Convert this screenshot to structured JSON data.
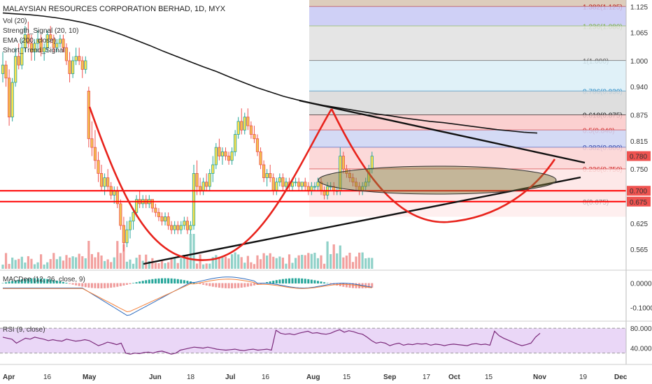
{
  "header": {
    "symbol_line": "MALAYSIAN RESOURCES CORPORATION BERHAD, 1D, MYX",
    "indicators": [
      "Vol (20)",
      "Strength_Signal (20, 10)",
      "EMA (200, close)",
      "Short_Trend_Signal"
    ]
  },
  "subpanes": {
    "macd_label": "MACDee (12, 26, close, 9)",
    "rsi_label": "RSI (9, close)"
  },
  "colors": {
    "up": "#26a69a",
    "down": "#ef5350",
    "candle_up_body": "#ffe14d",
    "ema": "#111111",
    "support_red": "#ff0000",
    "cup_curve": "#e8231c",
    "trendline": "#111111",
    "macd_line": "#2f6dbf",
    "signal_line": "#f5813a",
    "rsi_line": "#7b2a7b",
    "rsi_band": "#ead7f7"
  },
  "chart_data": [
    {
      "type": "candlestick",
      "title": "MALAYSIAN RESOURCES CORPORATION BERHAD, 1D, MYX",
      "x_ticks": [
        "Apr",
        "16",
        "May",
        "Jun",
        "18",
        "Jul",
        "16",
        "Aug",
        "15",
        "Sep",
        "17",
        "Oct",
        "15",
        "Nov",
        "19",
        "Dec"
      ],
      "y_ticks": [
        1.125,
        1.065,
        1.0,
        0.94,
        0.875,
        0.815,
        0.75,
        0.625,
        0.565
      ],
      "ylim": [
        0.52,
        1.14
      ],
      "price_labels": [
        {
          "value": 0.78,
          "text": "0.780",
          "color": "#ef5350"
        },
        {
          "value": 0.7,
          "text": "0.700",
          "color": "#ef5350"
        },
        {
          "value": 0.675,
          "text": "0.675",
          "color": "#ef5350"
        }
      ],
      "fibonacci": [
        {
          "level": "1.382",
          "price": 1.125,
          "text": "1.382(1.125)",
          "color": "#b71c1c",
          "fill": "#d7c4b0"
        },
        {
          "level": "1.236",
          "price": 1.08,
          "text": "1.236(1.080)",
          "color": "#7cb342",
          "fill": "#c7c8f5"
        },
        {
          "level": "1",
          "price": 1.0,
          "text": "1(1.000)",
          "color": "#555555",
          "fill": "#e1e1e1"
        },
        {
          "level": "0.786",
          "price": 0.93,
          "text": "0.786(0.930)",
          "color": "#2a8ac4",
          "fill": "#dbeef7"
        },
        {
          "level": "0.618",
          "price": 0.875,
          "text": "0.618(0.875)",
          "color": "#111111",
          "fill": "#d8d8d8"
        },
        {
          "level": "0.5",
          "price": 0.84,
          "text": "0.5(0.840)",
          "color": "#d32f2f",
          "fill": "#fac8c8"
        },
        {
          "level": "0.382",
          "price": 0.8,
          "text": "0.382(0.800)",
          "color": "#3949ab",
          "fill": "#ccd3f3"
        },
        {
          "level": "0.236",
          "price": 0.75,
          "text": "0.236(0.750)",
          "color": "#d32f2f",
          "fill": "#fbd2d2"
        },
        {
          "level": "0",
          "price": 0.675,
          "text": "0(0.675)",
          "color": "#777777",
          "fill": "#fde4e4"
        }
      ],
      "support_lines": [
        0.7,
        0.675
      ],
      "candles": [
        {
          "o": 0.97,
          "h": 1.02,
          "l": 0.95,
          "c": 0.99
        },
        {
          "o": 0.99,
          "h": 1.0,
          "l": 0.94,
          "c": 0.96
        },
        {
          "o": 0.96,
          "h": 0.98,
          "l": 0.85,
          "c": 0.87
        },
        {
          "o": 0.87,
          "h": 0.96,
          "l": 0.86,
          "c": 0.95
        },
        {
          "o": 0.95,
          "h": 1.03,
          "l": 0.94,
          "c": 1.01
        },
        {
          "o": 1.01,
          "h": 1.04,
          "l": 0.98,
          "c": 0.99
        },
        {
          "o": 0.99,
          "h": 1.05,
          "l": 0.98,
          "c": 1.03
        },
        {
          "o": 1.03,
          "h": 1.08,
          "l": 1.02,
          "c": 1.06
        },
        {
          "o": 1.06,
          "h": 1.09,
          "l": 1.03,
          "c": 1.04
        },
        {
          "o": 1.04,
          "h": 1.06,
          "l": 1.0,
          "c": 1.02
        },
        {
          "o": 1.02,
          "h": 1.05,
          "l": 1.0,
          "c": 1.04
        },
        {
          "o": 1.04,
          "h": 1.07,
          "l": 1.02,
          "c": 1.05
        },
        {
          "o": 1.05,
          "h": 1.06,
          "l": 1.01,
          "c": 1.02
        },
        {
          "o": 1.02,
          "h": 1.04,
          "l": 1.0,
          "c": 1.03
        },
        {
          "o": 1.03,
          "h": 1.07,
          "l": 1.02,
          "c": 1.06
        },
        {
          "o": 1.06,
          "h": 1.08,
          "l": 1.04,
          "c": 1.05
        },
        {
          "o": 1.05,
          "h": 1.06,
          "l": 1.02,
          "c": 1.03
        },
        {
          "o": 1.03,
          "h": 1.05,
          "l": 1.02,
          "c": 1.04
        },
        {
          "o": 1.04,
          "h": 1.06,
          "l": 1.03,
          "c": 1.05
        },
        {
          "o": 1.05,
          "h": 1.06,
          "l": 1.02,
          "c": 1.03
        },
        {
          "o": 1.03,
          "h": 1.04,
          "l": 0.99,
          "c": 1.0
        },
        {
          "o": 1.0,
          "h": 1.02,
          "l": 0.95,
          "c": 0.97
        },
        {
          "o": 0.97,
          "h": 1.01,
          "l": 0.96,
          "c": 1.0
        },
        {
          "o": 1.0,
          "h": 1.03,
          "l": 0.99,
          "c": 1.01
        },
        {
          "o": 1.01,
          "h": 1.03,
          "l": 0.99,
          "c": 1.0
        },
        {
          "o": 1.0,
          "h": 1.01,
          "l": 0.96,
          "c": 0.98
        },
        {
          "o": 0.98,
          "h": 1.01,
          "l": 0.97,
          "c": 1.0
        },
        {
          "o": 0.93,
          "h": 0.94,
          "l": 0.8,
          "c": 0.82
        },
        {
          "o": 0.82,
          "h": 0.86,
          "l": 0.78,
          "c": 0.8
        },
        {
          "o": 0.8,
          "h": 0.84,
          "l": 0.75,
          "c": 0.77
        },
        {
          "o": 0.77,
          "h": 0.79,
          "l": 0.72,
          "c": 0.74
        },
        {
          "o": 0.74,
          "h": 0.76,
          "l": 0.7,
          "c": 0.71
        },
        {
          "o": 0.71,
          "h": 0.74,
          "l": 0.69,
          "c": 0.73
        },
        {
          "o": 0.73,
          "h": 0.75,
          "l": 0.7,
          "c": 0.71
        },
        {
          "o": 0.71,
          "h": 0.72,
          "l": 0.68,
          "c": 0.69
        },
        {
          "o": 0.69,
          "h": 0.71,
          "l": 0.67,
          "c": 0.7
        },
        {
          "o": 0.7,
          "h": 0.71,
          "l": 0.66,
          "c": 0.67
        },
        {
          "o": 0.67,
          "h": 0.68,
          "l": 0.61,
          "c": 0.62
        },
        {
          "o": 0.62,
          "h": 0.64,
          "l": 0.56,
          "c": 0.58
        },
        {
          "o": 0.58,
          "h": 0.63,
          "l": 0.57,
          "c": 0.61
        },
        {
          "o": 0.61,
          "h": 0.64,
          "l": 0.59,
          "c": 0.63
        },
        {
          "o": 0.63,
          "h": 0.66,
          "l": 0.61,
          "c": 0.65
        },
        {
          "o": 0.65,
          "h": 0.69,
          "l": 0.64,
          "c": 0.68
        },
        {
          "o": 0.68,
          "h": 0.7,
          "l": 0.66,
          "c": 0.67
        },
        {
          "o": 0.67,
          "h": 0.69,
          "l": 0.66,
          "c": 0.68
        },
        {
          "o": 0.68,
          "h": 0.69,
          "l": 0.66,
          "c": 0.67
        },
        {
          "o": 0.67,
          "h": 0.69,
          "l": 0.66,
          "c": 0.68
        },
        {
          "o": 0.68,
          "h": 0.68,
          "l": 0.65,
          "c": 0.66
        },
        {
          "o": 0.66,
          "h": 0.67,
          "l": 0.64,
          "c": 0.65
        },
        {
          "o": 0.65,
          "h": 0.66,
          "l": 0.63,
          "c": 0.64
        },
        {
          "o": 0.64,
          "h": 0.65,
          "l": 0.62,
          "c": 0.63
        },
        {
          "o": 0.63,
          "h": 0.65,
          "l": 0.62,
          "c": 0.64
        },
        {
          "o": 0.64,
          "h": 0.65,
          "l": 0.61,
          "c": 0.62
        },
        {
          "o": 0.62,
          "h": 0.63,
          "l": 0.6,
          "c": 0.61
        },
        {
          "o": 0.61,
          "h": 0.63,
          "l": 0.6,
          "c": 0.62
        },
        {
          "o": 0.62,
          "h": 0.63,
          "l": 0.6,
          "c": 0.61
        },
        {
          "o": 0.61,
          "h": 0.63,
          "l": 0.6,
          "c": 0.62
        },
        {
          "o": 0.62,
          "h": 0.64,
          "l": 0.61,
          "c": 0.63
        },
        {
          "o": 0.63,
          "h": 0.64,
          "l": 0.6,
          "c": 0.61
        },
        {
          "o": 0.61,
          "h": 0.63,
          "l": 0.6,
          "c": 0.62
        },
        {
          "o": 0.62,
          "h": 0.76,
          "l": 0.61,
          "c": 0.74
        },
        {
          "o": 0.74,
          "h": 0.77,
          "l": 0.69,
          "c": 0.71
        },
        {
          "o": 0.71,
          "h": 0.73,
          "l": 0.69,
          "c": 0.7
        },
        {
          "o": 0.7,
          "h": 0.73,
          "l": 0.69,
          "c": 0.72
        },
        {
          "o": 0.72,
          "h": 0.74,
          "l": 0.7,
          "c": 0.71
        },
        {
          "o": 0.71,
          "h": 0.75,
          "l": 0.7,
          "c": 0.74
        },
        {
          "o": 0.74,
          "h": 0.78,
          "l": 0.72,
          "c": 0.76
        },
        {
          "o": 0.76,
          "h": 0.81,
          "l": 0.75,
          "c": 0.8
        },
        {
          "o": 0.8,
          "h": 0.82,
          "l": 0.77,
          "c": 0.78
        },
        {
          "o": 0.78,
          "h": 0.8,
          "l": 0.76,
          "c": 0.79
        },
        {
          "o": 0.79,
          "h": 0.8,
          "l": 0.77,
          "c": 0.78
        },
        {
          "o": 0.78,
          "h": 0.79,
          "l": 0.76,
          "c": 0.77
        },
        {
          "o": 0.77,
          "h": 0.8,
          "l": 0.76,
          "c": 0.79
        },
        {
          "o": 0.79,
          "h": 0.84,
          "l": 0.78,
          "c": 0.83
        },
        {
          "o": 0.83,
          "h": 0.87,
          "l": 0.82,
          "c": 0.86
        },
        {
          "o": 0.86,
          "h": 0.89,
          "l": 0.83,
          "c": 0.84
        },
        {
          "o": 0.84,
          "h": 0.88,
          "l": 0.83,
          "c": 0.87
        },
        {
          "o": 0.87,
          "h": 0.89,
          "l": 0.84,
          "c": 0.85
        },
        {
          "o": 0.85,
          "h": 0.86,
          "l": 0.82,
          "c": 0.83
        },
        {
          "o": 0.83,
          "h": 0.85,
          "l": 0.81,
          "c": 0.82
        },
        {
          "o": 0.82,
          "h": 0.83,
          "l": 0.78,
          "c": 0.79
        },
        {
          "o": 0.79,
          "h": 0.8,
          "l": 0.75,
          "c": 0.76
        },
        {
          "o": 0.76,
          "h": 0.77,
          "l": 0.72,
          "c": 0.73
        },
        {
          "o": 0.73,
          "h": 0.75,
          "l": 0.71,
          "c": 0.74
        },
        {
          "o": 0.74,
          "h": 0.76,
          "l": 0.72,
          "c": 0.73
        },
        {
          "o": 0.73,
          "h": 0.74,
          "l": 0.69,
          "c": 0.7
        },
        {
          "o": 0.7,
          "h": 0.73,
          "l": 0.69,
          "c": 0.72
        },
        {
          "o": 0.72,
          "h": 0.74,
          "l": 0.71,
          "c": 0.73
        },
        {
          "o": 0.73,
          "h": 0.74,
          "l": 0.7,
          "c": 0.71
        },
        {
          "o": 0.71,
          "h": 0.73,
          "l": 0.7,
          "c": 0.72
        },
        {
          "o": 0.72,
          "h": 0.73,
          "l": 0.7,
          "c": 0.71
        },
        {
          "o": 0.71,
          "h": 0.73,
          "l": 0.7,
          "c": 0.72
        },
        {
          "o": 0.72,
          "h": 0.73,
          "l": 0.71,
          "c": 0.72
        },
        {
          "o": 0.72,
          "h": 0.73,
          "l": 0.7,
          "c": 0.71
        },
        {
          "o": 0.71,
          "h": 0.72,
          "l": 0.7,
          "c": 0.72
        },
        {
          "o": 0.72,
          "h": 0.73,
          "l": 0.7,
          "c": 0.71
        },
        {
          "o": 0.71,
          "h": 0.72,
          "l": 0.69,
          "c": 0.7
        },
        {
          "o": 0.7,
          "h": 0.72,
          "l": 0.69,
          "c": 0.71
        },
        {
          "o": 0.71,
          "h": 0.72,
          "l": 0.7,
          "c": 0.71
        },
        {
          "o": 0.71,
          "h": 0.73,
          "l": 0.7,
          "c": 0.72
        },
        {
          "o": 0.72,
          "h": 0.73,
          "l": 0.69,
          "c": 0.7
        },
        {
          "o": 0.7,
          "h": 0.71,
          "l": 0.68,
          "c": 0.69
        },
        {
          "o": 0.69,
          "h": 0.72,
          "l": 0.68,
          "c": 0.71
        },
        {
          "o": 0.71,
          "h": 0.72,
          "l": 0.7,
          "c": 0.71
        },
        {
          "o": 0.71,
          "h": 0.72,
          "l": 0.69,
          "c": 0.7
        },
        {
          "o": 0.7,
          "h": 0.71,
          "l": 0.69,
          "c": 0.7
        },
        {
          "o": 0.7,
          "h": 0.8,
          "l": 0.69,
          "c": 0.78
        },
        {
          "o": 0.78,
          "h": 0.79,
          "l": 0.74,
          "c": 0.75
        },
        {
          "o": 0.75,
          "h": 0.76,
          "l": 0.73,
          "c": 0.74
        },
        {
          "o": 0.74,
          "h": 0.75,
          "l": 0.72,
          "c": 0.73
        },
        {
          "o": 0.73,
          "h": 0.74,
          "l": 0.71,
          "c": 0.72
        },
        {
          "o": 0.72,
          "h": 0.73,
          "l": 0.7,
          "c": 0.71
        },
        {
          "o": 0.71,
          "h": 0.72,
          "l": 0.69,
          "c": 0.7
        },
        {
          "o": 0.7,
          "h": 0.72,
          "l": 0.69,
          "c": 0.71
        },
        {
          "o": 0.71,
          "h": 0.73,
          "l": 0.7,
          "c": 0.72
        },
        {
          "o": 0.72,
          "h": 0.76,
          "l": 0.71,
          "c": 0.75
        },
        {
          "o": 0.75,
          "h": 0.79,
          "l": 0.74,
          "c": 0.78
        }
      ],
      "ema_200": [
        1.11,
        1.108,
        1.106,
        1.103,
        1.099,
        1.094,
        1.088,
        1.08,
        1.07,
        1.059,
        1.047,
        1.035,
        1.022,
        1.01,
        0.998,
        0.986,
        0.975,
        0.962,
        0.95,
        0.938,
        0.928,
        0.918,
        0.91,
        0.903,
        0.897,
        0.892,
        0.887,
        0.882,
        0.877,
        0.873,
        0.868,
        0.864,
        0.86,
        0.857,
        0.853,
        0.849,
        0.845,
        0.841,
        0.838,
        0.835,
        0.833
      ],
      "annotations": {
        "cup_curves": 2,
        "trendlines": 2,
        "ellipse": "consolidation zone"
      }
    },
    {
      "type": "line",
      "title": "MACDee (12, 26, close, 9)",
      "y_ticks": [
        0.0,
        -0.1
      ],
      "ylim": [
        -0.15,
        0.05
      ],
      "series": []
    },
    {
      "type": "line",
      "title": "RSI (9, close)",
      "y_ticks": [
        80.0,
        40.0
      ],
      "ylim": [
        10,
        90
      ],
      "values": [
        62,
        60,
        58,
        50,
        55,
        60,
        58,
        62,
        60,
        58,
        55,
        57,
        55,
        54,
        58,
        56,
        54,
        55,
        57,
        55,
        50,
        45,
        48,
        52,
        50,
        47,
        50,
        30,
        28,
        30,
        29,
        31,
        32,
        30,
        33,
        34,
        31,
        28,
        30,
        36,
        38,
        40,
        42,
        41,
        40,
        42,
        40,
        38,
        37,
        36,
        37,
        38,
        36,
        35,
        37,
        38,
        36,
        37,
        38,
        36,
        76,
        70,
        68,
        69,
        67,
        70,
        72,
        74,
        70,
        71,
        69,
        68,
        70,
        74,
        77,
        72,
        75,
        73,
        70,
        68,
        62,
        55,
        50,
        52,
        50,
        45,
        48,
        50,
        46,
        48,
        47,
        49,
        48,
        49,
        46,
        48,
        47,
        45,
        47,
        48,
        47,
        46,
        45,
        48,
        49,
        47,
        48,
        46,
        74,
        65,
        60,
        56,
        52,
        48,
        45,
        47,
        50,
        62,
        70
      ]
    }
  ]
}
